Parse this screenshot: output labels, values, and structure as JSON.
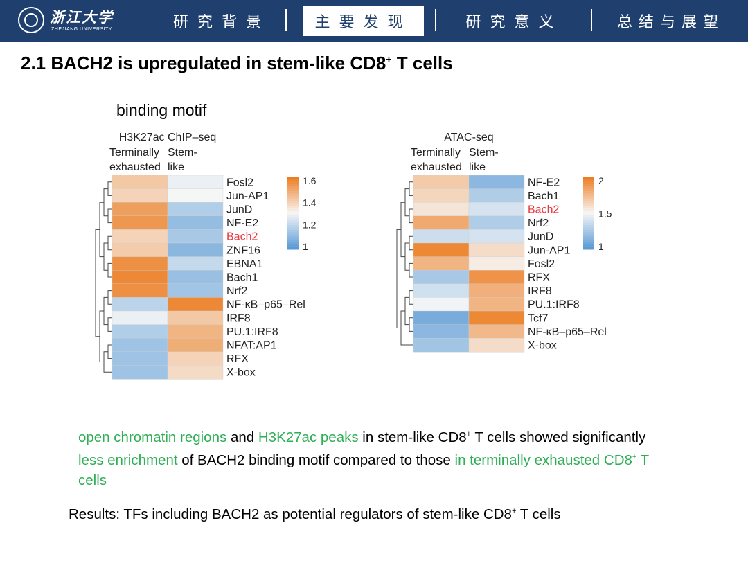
{
  "header": {
    "logo_cn": "浙江大学",
    "logo_en": "ZHEJIANG UNIVERSITY",
    "nav": [
      "研究背景",
      "主要发现",
      "研究意义",
      "总结与展望"
    ],
    "active_index": 1,
    "bar_color": "#1f3f6e"
  },
  "slide": {
    "title_prefix": "2.1 BACH2 is upregulated in stem-like CD8",
    "title_sup": "+",
    "title_suffix": " T cells",
    "motif_label": "binding motif"
  },
  "heatmaps": [
    {
      "title": "H3K27ac ChIP–seq",
      "columns": [
        "Terminally\nexhausted",
        "Stem-\nlike"
      ],
      "rows": [
        "Fosl2",
        "Jun-AP1",
        "JunD",
        "NF-E2",
        "Bach2",
        "ZNF16",
        "EBNA1",
        "Bach1",
        "Nrf2",
        "NF-κB–p65–Rel",
        "IRF8",
        "PU.1:IRF8",
        "NFAT:AP1",
        "RFX",
        "X-box"
      ],
      "highlight": "Bach2",
      "values": [
        [
          1.45,
          1.3
        ],
        [
          1.42,
          1.32
        ],
        [
          1.56,
          1.18
        ],
        [
          1.58,
          1.12
        ],
        [
          1.42,
          1.16
        ],
        [
          1.44,
          1.1
        ],
        [
          1.6,
          1.22
        ],
        [
          1.62,
          1.13
        ],
        [
          1.6,
          1.15
        ],
        [
          1.2,
          1.62
        ],
        [
          1.3,
          1.45
        ],
        [
          1.18,
          1.5
        ],
        [
          1.14,
          1.52
        ],
        [
          1.14,
          1.42
        ],
        [
          1.14,
          1.4
        ]
      ],
      "legend": {
        "ticks": [
          "1.6",
          "1.4",
          "1.2",
          "1"
        ],
        "min": 1.0,
        "max": 1.65
      }
    },
    {
      "title": "ATAC-seq",
      "columns": [
        "Terminally\nexhausted",
        "Stem-\nlike"
      ],
      "rows": [
        "NF-E2",
        "Bach1",
        "Bach2",
        "Nrf2",
        "JunD",
        "Jun-AP1",
        "Fosl2",
        "RFX",
        "IRF8",
        "PU.1:IRF8",
        "Tcf7",
        "NF-κB–p65–Rel",
        "X-box"
      ],
      "highlight": "Bach2",
      "values": [
        [
          1.7,
          1.12
        ],
        [
          1.65,
          1.25
        ],
        [
          1.58,
          1.38
        ],
        [
          1.85,
          1.25
        ],
        [
          1.35,
          1.38
        ],
        [
          2.0,
          1.62
        ],
        [
          1.8,
          1.55
        ],
        [
          1.22,
          1.95
        ],
        [
          1.36,
          1.82
        ],
        [
          1.48,
          1.8
        ],
        [
          1.05,
          2.0
        ],
        [
          1.12,
          1.78
        ],
        [
          1.2,
          1.62
        ]
      ],
      "legend": {
        "ticks": [
          "2",
          "1.5",
          "1"
        ],
        "min": 0.95,
        "max": 2.05
      }
    }
  ],
  "paragraph": {
    "p1": "open chromatin regions",
    "p2": " and ",
    "p3": "H3K27ac peaks",
    "p4": " in stem-like CD8",
    "p5": " T cells showed significantly ",
    "p6": "less enrichment",
    "p7": " of BACH2 binding motif compared to those ",
    "p8": "in terminally exhausted CD8",
    "p9": " T cells",
    "sup": "+",
    "green": "#2eaf55"
  },
  "results": {
    "r1": "Results: TFs including BACH2 as potential regulators of stem-like CD8",
    "r2": " T cells",
    "sup": "+"
  },
  "colors": {
    "low": "#5b9bd5",
    "mid": "#f7f7f7",
    "high": "#ec7d22",
    "highlight": "#e8383d"
  }
}
